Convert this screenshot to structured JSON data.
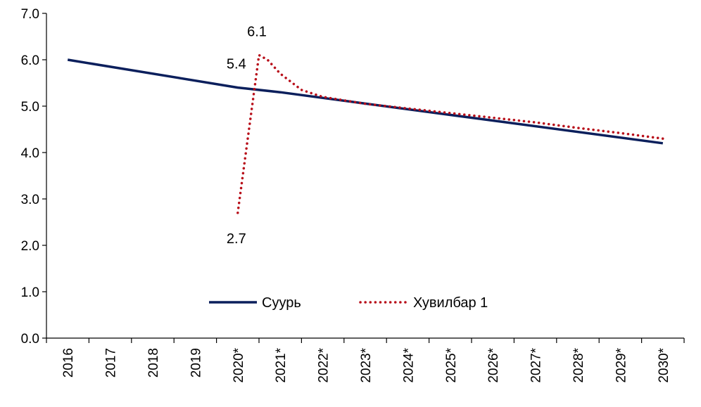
{
  "chart_data": {
    "type": "line",
    "categories": [
      "2016",
      "2017",
      "2018",
      "2019",
      "2020*",
      "2021*",
      "2022*",
      "2023*",
      "2024*",
      "2025*",
      "2026*",
      "2027*",
      "2028*",
      "2029*",
      "2030*"
    ],
    "series": [
      {
        "name": "Суурь",
        "color": "#0b1f5c",
        "style": "solid",
        "x": [
          0,
          4,
          5,
          14
        ],
        "values": [
          6.0,
          5.4,
          5.3,
          4.2
        ]
      },
      {
        "name": "Хувилбар 1",
        "color": "#b80f1a",
        "style": "dotted",
        "x": [
          4,
          4.5,
          4.7,
          5,
          5.5,
          6,
          7,
          8,
          9,
          10,
          11,
          12,
          13,
          14
        ],
        "values": [
          2.7,
          6.1,
          6.0,
          5.7,
          5.35,
          5.2,
          5.05,
          4.95,
          4.85,
          4.75,
          4.65,
          4.53,
          4.42,
          4.3
        ]
      }
    ],
    "annotations": [
      {
        "text": "5.4",
        "x": 4,
        "y": 5.4,
        "position": "above-left"
      },
      {
        "text": "6.1",
        "x": 4.5,
        "y": 6.1,
        "position": "above"
      },
      {
        "text": "2.7",
        "x": 4,
        "y": 2.7,
        "position": "below"
      }
    ],
    "yticks": [
      "0.0",
      "1.0",
      "2.0",
      "3.0",
      "4.0",
      "5.0",
      "6.0",
      "7.0"
    ],
    "ylim": [
      0,
      7
    ],
    "grid": false,
    "legend_position": "bottom-center"
  }
}
